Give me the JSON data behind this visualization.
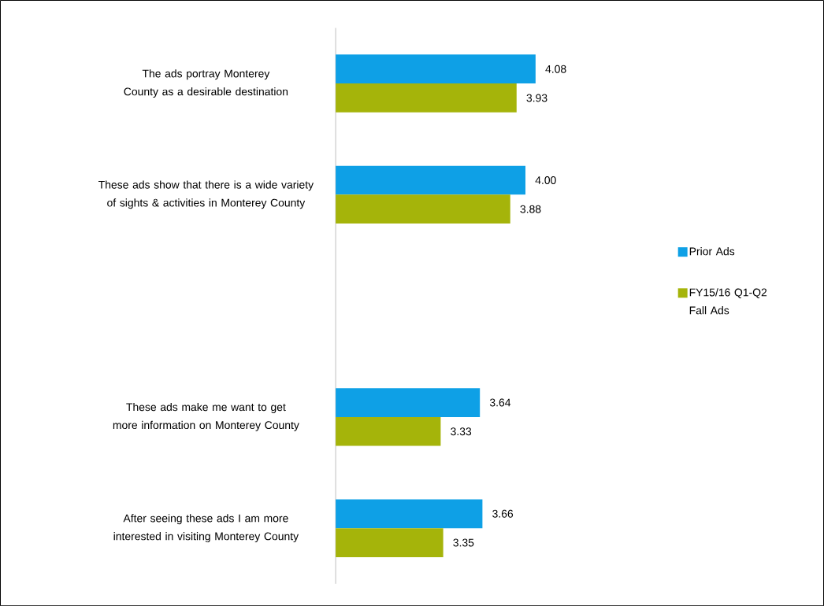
{
  "chart_data": {
    "type": "bar",
    "orientation": "horizontal",
    "categories": [
      "The ads portray Monterey County as a desirable destination",
      "These ads show that there is a wide variety of sights & activities in Monterey County",
      null,
      "These ads make me want to get more information on Monterey County",
      "After seeing these ads I am more interested in visiting Monterey County"
    ],
    "series": [
      {
        "name": "Prior Ads",
        "color": "#0ea0e6",
        "values": [
          4.08,
          4.0,
          null,
          3.64,
          3.66
        ],
        "value_labels": [
          "4.08",
          "4.00",
          null,
          "3.64",
          "3.66"
        ]
      },
      {
        "name": "FY15/16 Q1-Q2 Fall Ads",
        "color": "#a5b40a",
        "values": [
          3.93,
          3.88,
          null,
          3.33,
          3.35
        ],
        "value_labels": [
          "3.93",
          "3.88",
          null,
          "3.33",
          "3.35"
        ]
      }
    ],
    "xlim": [
      2.5,
      4.08
    ],
    "tick_labels": "y",
    "legend": "right",
    "grid": false
  }
}
